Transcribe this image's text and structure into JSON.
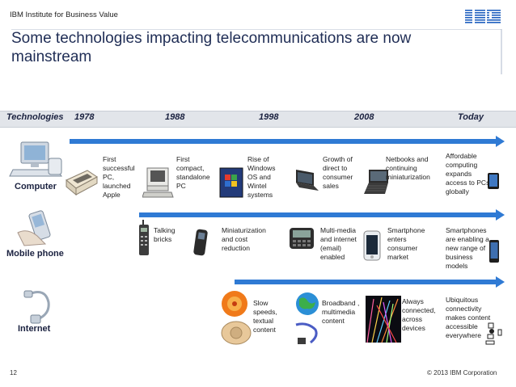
{
  "header": {
    "institute": "IBM Institute for Business Value",
    "logo": "IBM"
  },
  "title": "Some technologies impacting telecommunications are now mainstream",
  "timeline": {
    "row_header": "Technologies",
    "years": [
      "1978",
      "1988",
      "1998",
      "2008",
      "Today"
    ]
  },
  "rows": {
    "computer": {
      "label": "Computer",
      "items": [
        "First successful PC, launched Apple",
        "First compact, standalone PC",
        "Rise of Windows OS and Wintel systems",
        "Growth of direct to consumer sales",
        "Netbooks and continuing miniaturization",
        "Affordable computing expands access to PCs globally"
      ]
    },
    "mobile": {
      "label": "Mobile phone",
      "items": [
        "Talking bricks",
        "Miniaturization and cost reduction",
        "Multi-media and internet (email) enabled",
        "Smartphone enters consumer market",
        "Smartphones are enabling a new range of business models"
      ]
    },
    "internet": {
      "label": "Internet",
      "items": [
        "Slow speeds, textual content",
        "Broadband , multimedia content",
        "Always connected, across devices",
        "Ubiquitous connectivity makes content accessible everywhere"
      ]
    }
  },
  "footer": {
    "page": "12",
    "copyright": "© 2013 IBM Corporation"
  },
  "colors": {
    "arrow": "#2f7ad4",
    "title": "#1f2d55",
    "band": "#e2e5ea"
  }
}
